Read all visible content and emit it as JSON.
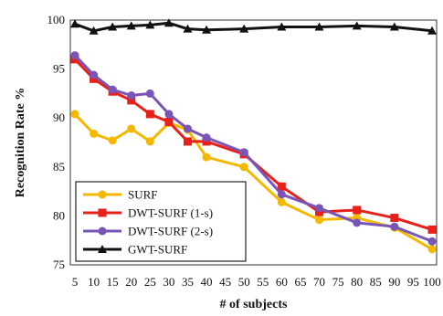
{
  "chart_data": {
    "type": "line",
    "xlabel": "# of subjects",
    "ylabel": "Recognition Rate %",
    "x": [
      5,
      10,
      15,
      20,
      25,
      30,
      35,
      40,
      50,
      60,
      70,
      80,
      90,
      100
    ],
    "x_tick_labels": [
      "5",
      "10",
      "15",
      "20",
      "25",
      "30",
      "35",
      "40",
      "45",
      "50",
      "55",
      "60",
      "65",
      "70",
      "75",
      "80",
      "85",
      "90",
      "95",
      "100"
    ],
    "y_ticks": [
      75,
      80,
      85,
      90,
      95,
      100
    ],
    "ylim": [
      75,
      100
    ],
    "grid": false,
    "legend_position": "bottom-left",
    "series": [
      {
        "name": "SURF",
        "color": "#F5B800",
        "marker": "circle",
        "values": [
          90.4,
          88.4,
          87.7,
          88.9,
          87.6,
          89.5,
          88.8,
          86.0,
          85.0,
          81.4,
          79.6,
          79.8,
          78.8,
          76.6
        ]
      },
      {
        "name": "DWT-SURF (1-s)",
        "color": "#E8201A",
        "marker": "square",
        "values": [
          96.0,
          94.0,
          92.7,
          91.8,
          90.4,
          89.6,
          87.6,
          87.6,
          86.3,
          83.0,
          80.4,
          80.6,
          79.8,
          78.6
        ]
      },
      {
        "name": "DWT-SURF (2-s)",
        "color": "#7A55B8",
        "marker": "circle",
        "values": [
          96.4,
          94.4,
          92.9,
          92.3,
          92.5,
          90.4,
          88.9,
          88.0,
          86.5,
          82.2,
          80.8,
          79.3,
          78.9,
          77.4
        ]
      },
      {
        "name": "GWT-SURF",
        "color": "#111111",
        "marker": "triangle",
        "values": [
          99.6,
          98.9,
          99.3,
          99.4,
          99.5,
          99.7,
          99.1,
          99.0,
          99.1,
          99.3,
          99.3,
          99.4,
          99.3,
          98.9
        ]
      }
    ]
  }
}
